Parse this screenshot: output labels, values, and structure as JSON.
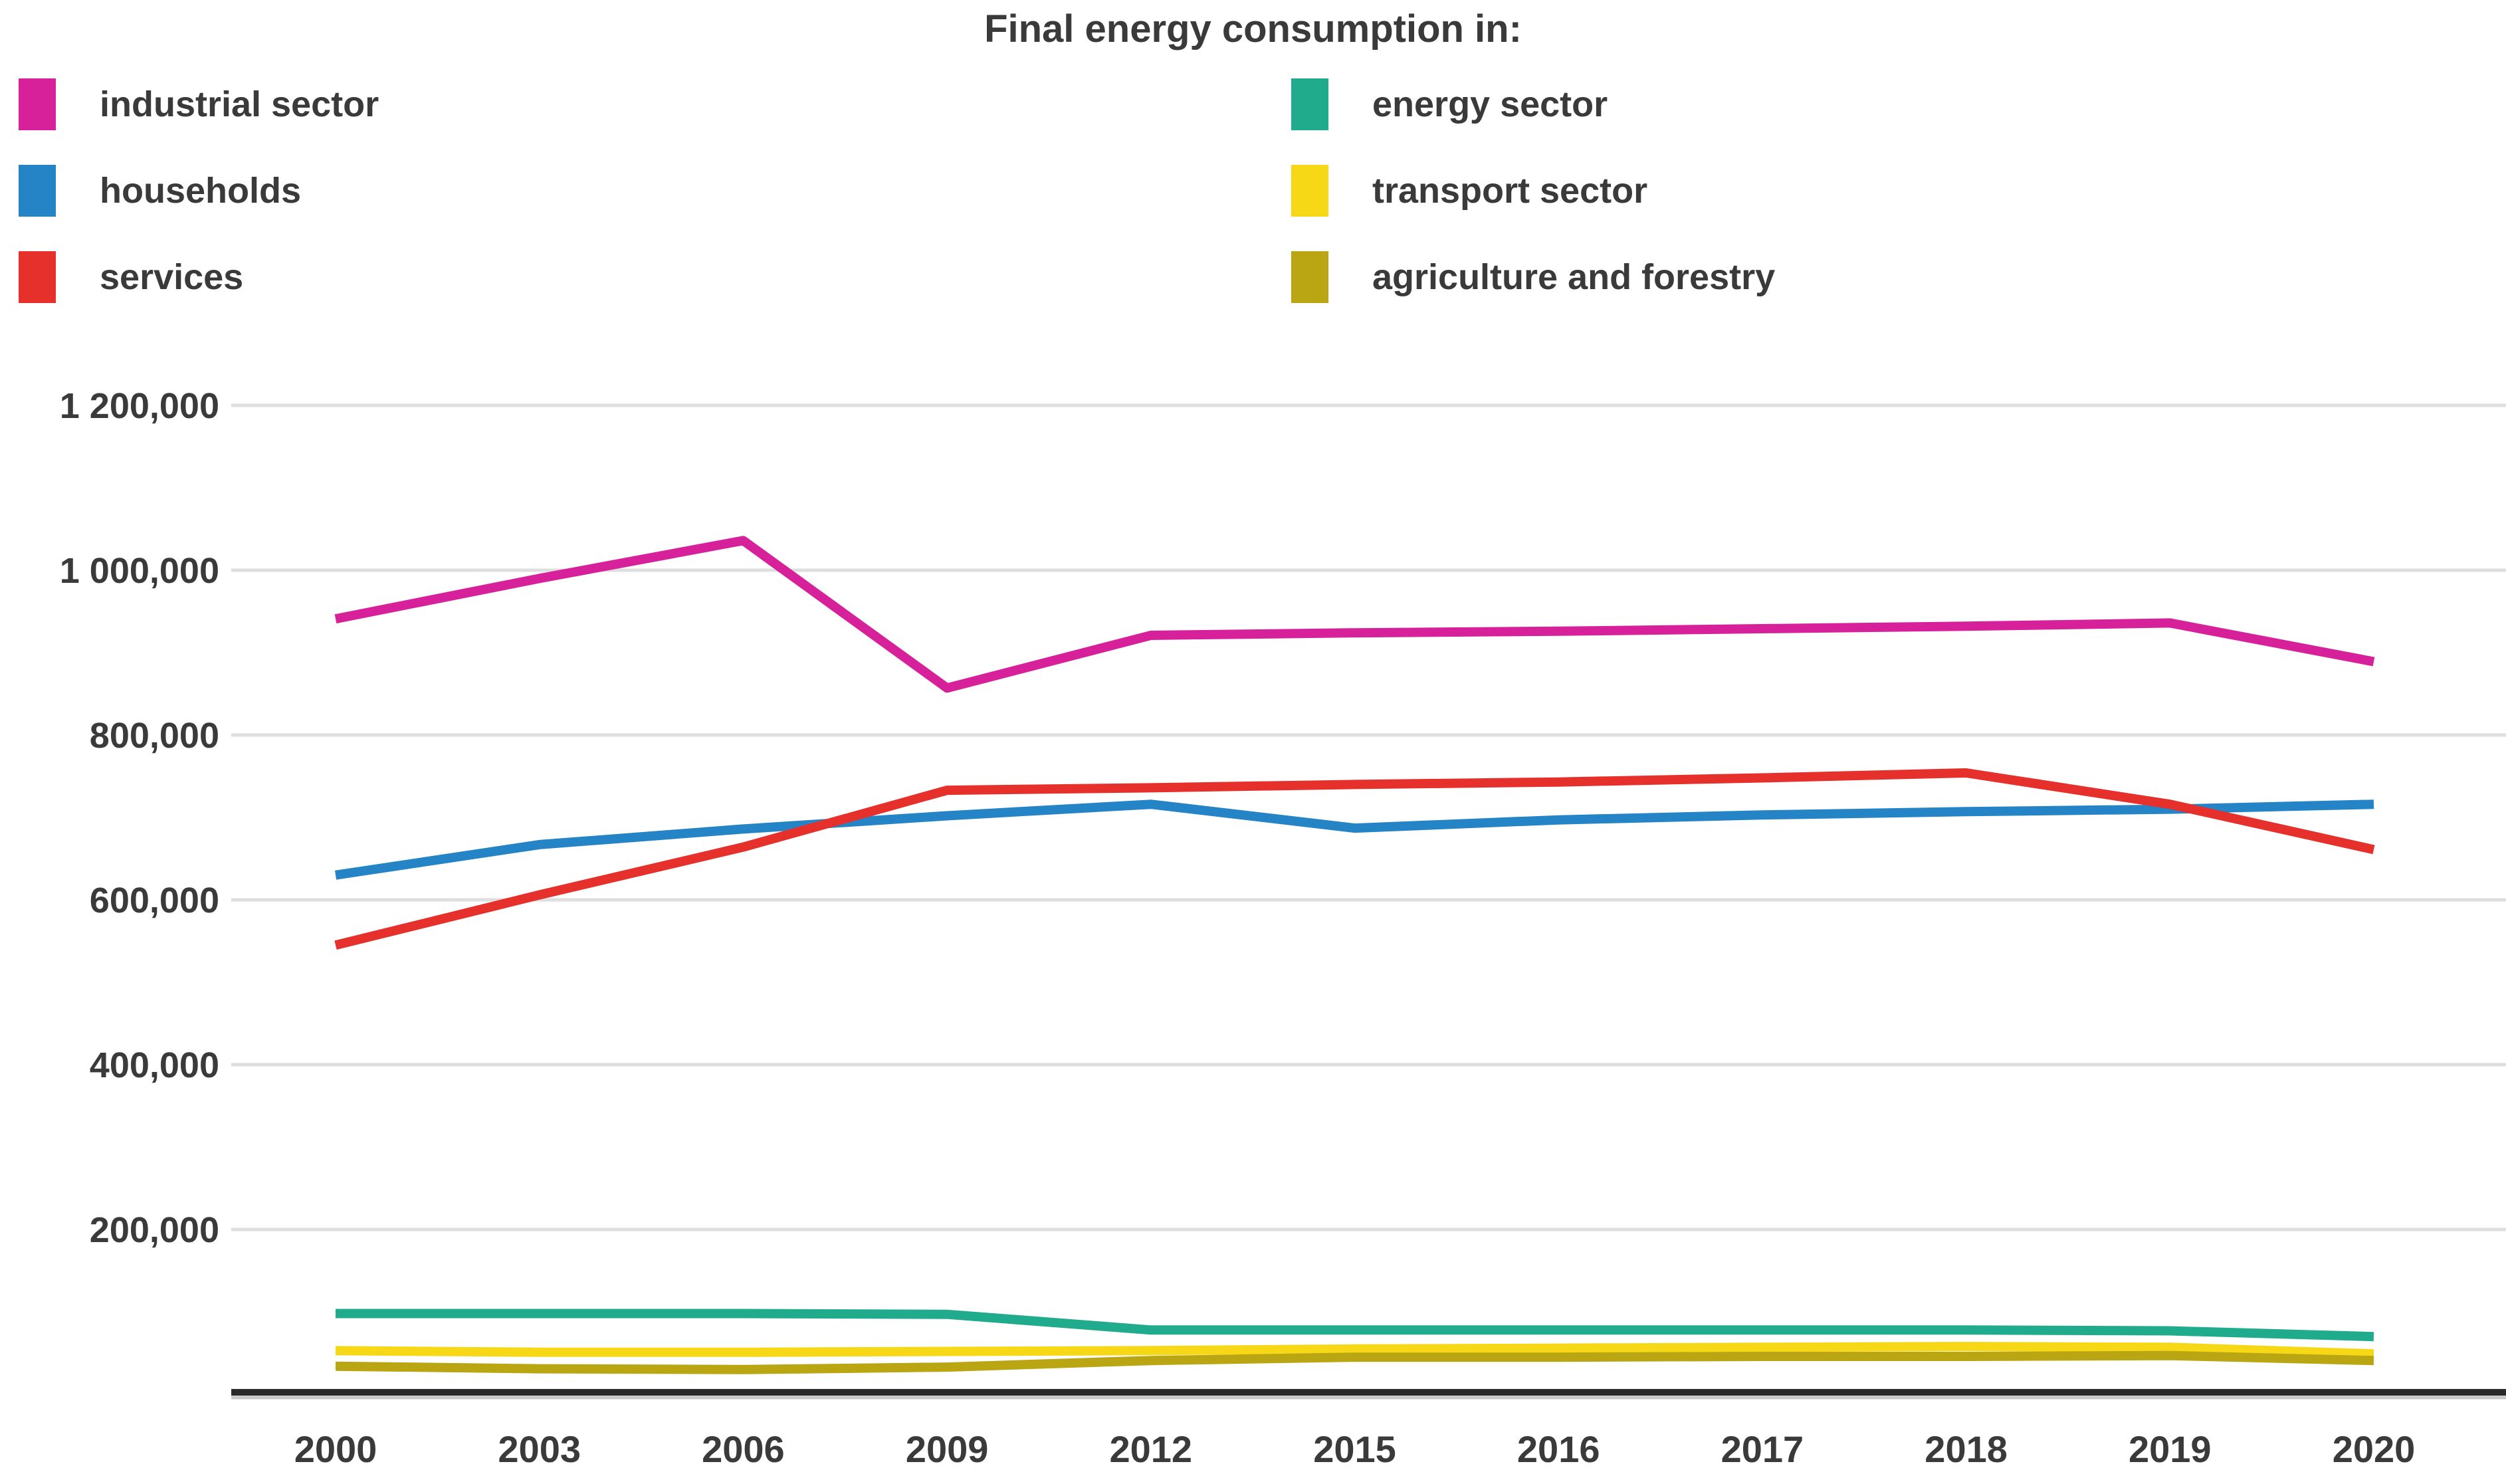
{
  "title": "Final energy consumption in:",
  "colors": {
    "text": "#3a3a3a",
    "grid": "#dedede",
    "axis": "#2b2b2b",
    "axis_shadow": "#c9c9c9",
    "background": "#ffffff"
  },
  "legend": {
    "columns": [
      [
        0,
        1,
        2
      ],
      [
        3,
        4,
        5
      ]
    ]
  },
  "chart_data": {
    "type": "line",
    "title": "Final energy consumption in:",
    "xlabel": "",
    "ylabel": "",
    "grid": true,
    "legend_position": "top",
    "ylim": [
      0,
      1250000
    ],
    "categories": [
      "2000",
      "2003",
      "2006",
      "2009",
      "2012",
      "2015",
      "2016",
      "2017",
      "2018",
      "2019",
      "2020"
    ],
    "y_ticks": [
      {
        "value": 1200000,
        "label": "1 200,000"
      },
      {
        "value": 1000000,
        "label": "1 000,000"
      },
      {
        "value": 800000,
        "label": "800,000"
      },
      {
        "value": 600000,
        "label": "600,000"
      },
      {
        "value": 400000,
        "label": "400,000"
      },
      {
        "value": 200000,
        "label": "200,000"
      }
    ],
    "series": [
      {
        "name": "industrial sector",
        "color": "#d6219b",
        "values": [
          941000,
          990000,
          1036000,
          857000,
          921000,
          924000,
          926000,
          929000,
          932000,
          936000,
          889000
        ]
      },
      {
        "name": "households",
        "color": "#2584c6",
        "values": [
          630000,
          667000,
          686000,
          702000,
          716000,
          687000,
          697000,
          703000,
          707000,
          710000,
          716000
        ]
      },
      {
        "name": "services",
        "color": "#e6302b",
        "values": [
          545000,
          606000,
          664000,
          733000,
          736000,
          740000,
          743000,
          748000,
          754000,
          716000,
          661000
        ]
      },
      {
        "name": "energy sector",
        "color": "#21ab8d",
        "values": [
          98000,
          98000,
          98000,
          97000,
          78000,
          78000,
          78000,
          78000,
          78000,
          77000,
          70000
        ]
      },
      {
        "name": "transport sector",
        "color": "#f6d817",
        "values": [
          53000,
          51000,
          51000,
          52000,
          53000,
          55000,
          56000,
          57000,
          58000,
          57000,
          49000
        ]
      },
      {
        "name": "agriculture and forestry",
        "color": "#baa513",
        "values": [
          34000,
          31000,
          30000,
          33000,
          41000,
          45000,
          45000,
          46000,
          46000,
          47000,
          41000
        ]
      }
    ]
  }
}
